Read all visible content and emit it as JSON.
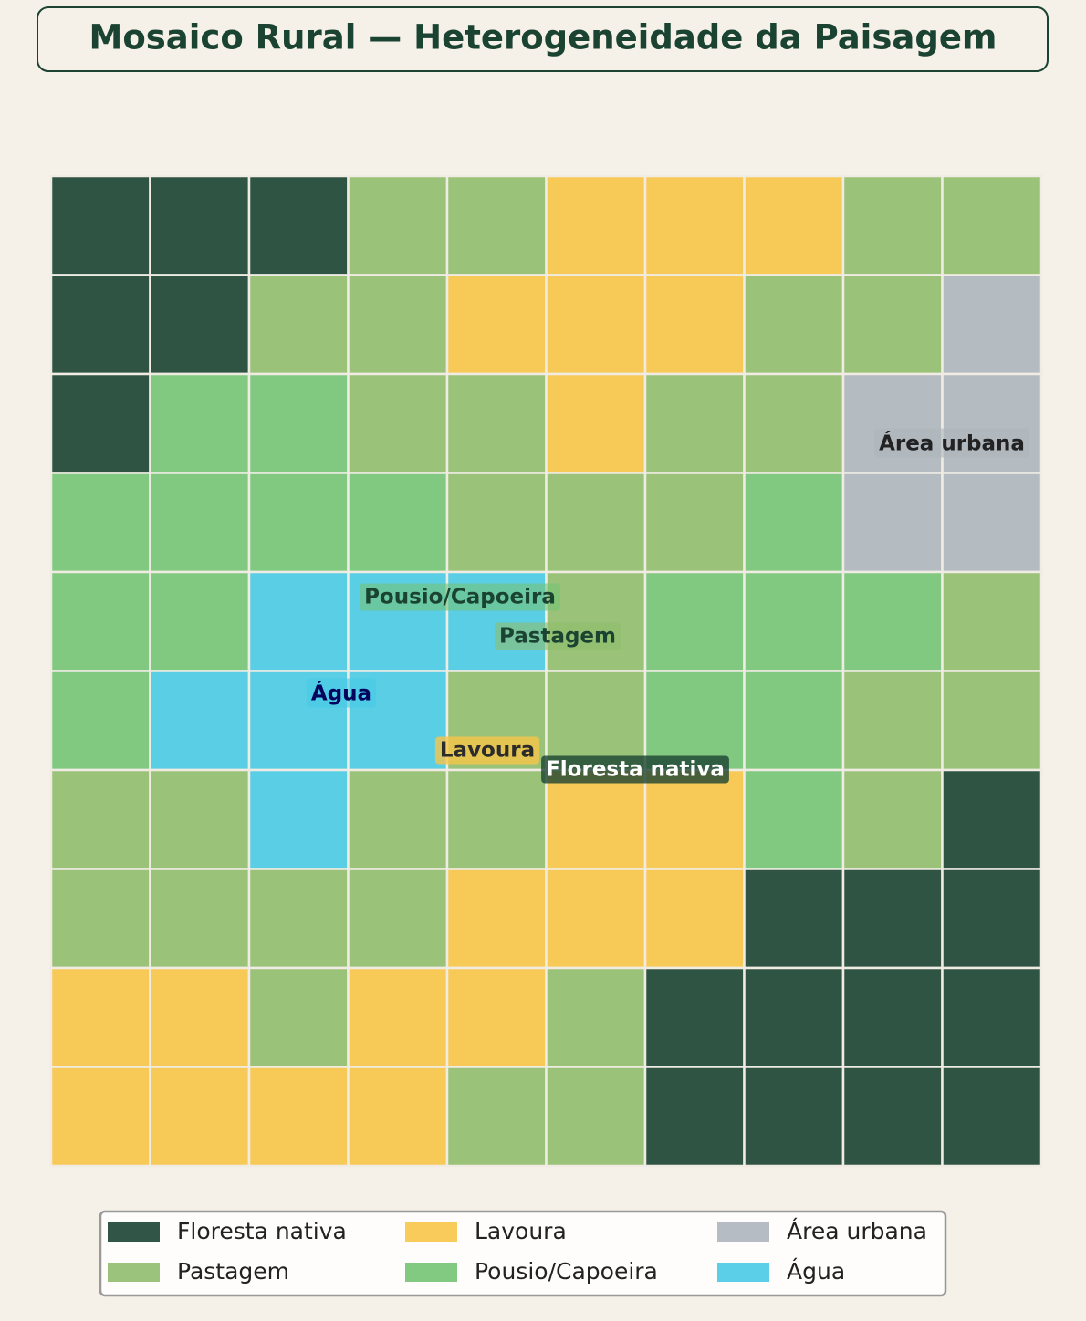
{
  "chart_data": {
    "type": "categorical-grid",
    "title": "Mosaico Rural — Heterogeneidade da Paisagem",
    "classes": [
      {
        "name": "Floresta nativa",
        "color": "#1b4332"
      },
      {
        "name": "Pastagem",
        "color": "#90bd6d"
      },
      {
        "name": "Lavoura",
        "color": "#f7c548"
      },
      {
        "name": "Pousio/Capoeira",
        "color": "#74c374"
      },
      {
        "name": "Área urbana",
        "color": "#adb5bd"
      },
      {
        "name": "Água",
        "color": "#48cae4"
      }
    ],
    "grid": [
      [
        0,
        0,
        0,
        1,
        1,
        2,
        2,
        2,
        1,
        1
      ],
      [
        0,
        0,
        1,
        1,
        2,
        2,
        2,
        1,
        1,
        4
      ],
      [
        0,
        3,
        3,
        1,
        1,
        2,
        1,
        1,
        4,
        4
      ],
      [
        3,
        3,
        3,
        3,
        1,
        1,
        1,
        3,
        4,
        4
      ],
      [
        3,
        3,
        5,
        5,
        5,
        1,
        3,
        3,
        3,
        1
      ],
      [
        3,
        5,
        5,
        5,
        1,
        1,
        3,
        3,
        1,
        1
      ],
      [
        1,
        1,
        5,
        1,
        1,
        2,
        2,
        3,
        1,
        0
      ],
      [
        1,
        1,
        1,
        1,
        2,
        2,
        2,
        0,
        0,
        0
      ],
      [
        2,
        2,
        1,
        2,
        2,
        1,
        0,
        0,
        0,
        0
      ],
      [
        2,
        2,
        2,
        2,
        1,
        1,
        0,
        0,
        0,
        0
      ]
    ],
    "legend": "bottom"
  }
}
